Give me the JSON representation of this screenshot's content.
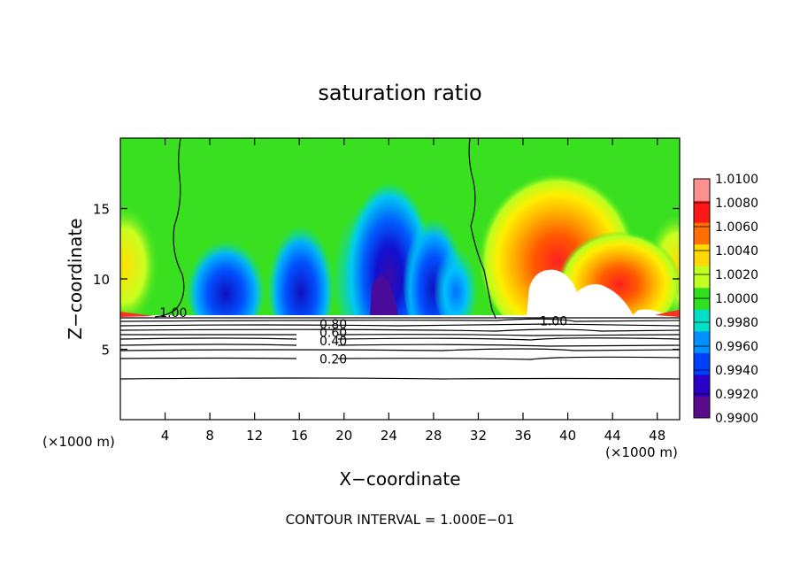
{
  "chart_data": {
    "type": "heatmap",
    "title": "saturation ratio",
    "xlabel": "X−coordinate",
    "ylabel": "Z−coordinate",
    "x_unit_left": "(×1000 m)",
    "x_unit_right": "(×1000 m)",
    "footer": "CONTOUR INTERVAL = 1.000E−01",
    "xlim": [
      0,
      50
    ],
    "ylim": [
      0,
      20
    ],
    "x_ticks": [
      4,
      8,
      12,
      16,
      20,
      24,
      28,
      32,
      36,
      40,
      44,
      48
    ],
    "x_tick_labels": [
      "4",
      "8",
      "12",
      "16",
      "20",
      "24",
      "28",
      "32",
      "36",
      "40",
      "44",
      "48"
    ],
    "y_ticks": [
      5,
      10,
      15
    ],
    "y_tick_labels": [
      "5",
      "10",
      "15"
    ],
    "colorbar": {
      "min": 0.99,
      "max": 1.01,
      "tick_values": [
        0.99,
        0.992,
        0.994,
        0.996,
        0.998,
        1.0,
        1.002,
        1.004,
        1.006,
        1.008,
        1.01
      ],
      "tick_labels": [
        "0.9900",
        "0.9920",
        "0.9940",
        "0.9960",
        "0.9980",
        "1.0000",
        "1.0020",
        "1.0040",
        "1.0060",
        "1.0080",
        "1.0100"
      ],
      "colors": [
        "#5a0a8a",
        "#2a00c8",
        "#0040ff",
        "#0090ff",
        "#00e0c8",
        "#30e020",
        "#c0ff20",
        "#ffd800",
        "#ff7000",
        "#ff1818",
        "#ff9090"
      ]
    },
    "contour_labels": [
      {
        "text": "1.00",
        "x": 3.5,
        "y": 7.6
      },
      {
        "text": "1.00",
        "x": 37.5,
        "y": 7.0
      },
      {
        "text": "0.80",
        "x": 17.8,
        "y": 6.8
      },
      {
        "text": "0.60",
        "x": 17.8,
        "y": 6.2
      },
      {
        "text": "0.40",
        "x": 17.8,
        "y": 5.6
      },
      {
        "text": "0.20",
        "x": 17.8,
        "y": 4.3
      }
    ],
    "colors": {
      "background": "#ffffff",
      "frame": "#000000",
      "contour": "#000000"
    }
  }
}
